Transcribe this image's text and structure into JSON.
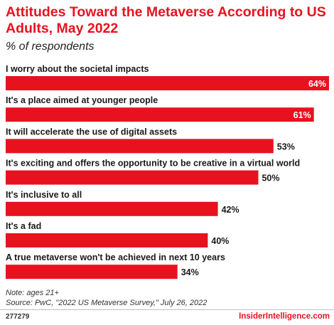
{
  "header": {
    "title": "Attitudes Toward the Metaverse According to US Adults, May 2022",
    "subtitle": "% of respondents"
  },
  "footer": {
    "note": "Note: ages 21+",
    "source": "Source: PwC, \"2022 US Metaverse Survey,\" July 26, 2022",
    "chart_id": "277279",
    "brand": "InsiderIntelligence.com"
  },
  "colors": {
    "bar": "#e8121f",
    "title": "#e8121f",
    "text": "#1a1a1a"
  },
  "chart_data": {
    "type": "bar",
    "orientation": "horizontal",
    "title": "Attitudes Toward the Metaverse According to US Adults, May 2022",
    "subtitle": "% of respondents",
    "categories": [
      "I worry about the societal impacts",
      "It's a place aimed at younger people",
      "It will accelerate the use of digital assets",
      "It's exciting and offers the opportunity to be creative in a virtual world",
      "It's inclusive to all",
      "It's a fad",
      "A true metaverse won't be achieved in next 10 years"
    ],
    "values": [
      64,
      61,
      53,
      50,
      42,
      40,
      34
    ],
    "value_labels": [
      "64%",
      "61%",
      "53%",
      "50%",
      "42%",
      "40%",
      "34%"
    ],
    "xlim": [
      0,
      64
    ],
    "grid": false,
    "legend": "none"
  }
}
